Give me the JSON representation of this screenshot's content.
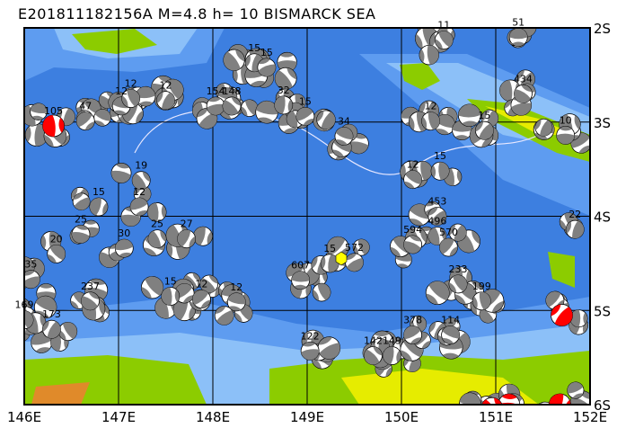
{
  "title": "E201811182156A M=4.8 h= 10 BISMARCK SEA",
  "map": {
    "lon_range": [
      146,
      152
    ],
    "lat_range": [
      -6,
      -2
    ],
    "lon_labels": [
      "146E",
      "147E",
      "148E",
      "149E",
      "150E",
      "151E",
      "152E"
    ],
    "lat_labels": [
      "2S",
      "3S",
      "4S",
      "5S",
      "6S"
    ],
    "grid": true,
    "colors": {
      "deep_ocean": "#3d7fe0",
      "mid_ocean": "#5e9cf0",
      "shallow": "#8cc0f8",
      "land_low": "#8ccc00",
      "land_high": "#e6ec00",
      "mountain": "#e08a2a",
      "ball_dark": "#808080",
      "ball_focus": "#ff0000",
      "ball_light": "#ffffff"
    }
  },
  "events": [
    {
      "lon": 151.24,
      "lat": -2.1,
      "label": "51"
    },
    {
      "lon": 150.45,
      "lat": -2.13,
      "label": "11"
    },
    {
      "lon": 148.44,
      "lat": -2.37,
      "label": "15"
    },
    {
      "lon": 148.57,
      "lat": -2.42,
      "label": "15"
    },
    {
      "lon": 151.29,
      "lat": -2.7,
      "label": "434"
    },
    {
      "lon": 146.31,
      "lat": -3.04,
      "label": "105",
      "red": true
    },
    {
      "lon": 146.65,
      "lat": -2.99,
      "label": "47"
    },
    {
      "lon": 147.03,
      "lat": -2.83,
      "label": "12"
    },
    {
      "lon": 147.13,
      "lat": -2.75,
      "label": "12"
    },
    {
      "lon": 147.5,
      "lat": -2.77,
      "label": "12"
    },
    {
      "lon": 148.03,
      "lat": -2.83,
      "label": "154"
    },
    {
      "lon": 148.2,
      "lat": -2.83,
      "label": "148"
    },
    {
      "lon": 148.75,
      "lat": -2.82,
      "label": "32"
    },
    {
      "lon": 148.98,
      "lat": -2.94,
      "label": "15"
    },
    {
      "lon": 149.39,
      "lat": -3.15,
      "label": "34"
    },
    {
      "lon": 150.31,
      "lat": -2.99,
      "label": "12"
    },
    {
      "lon": 150.88,
      "lat": -3.09,
      "label": "15"
    },
    {
      "lon": 151.74,
      "lat": -3.14,
      "label": "10"
    },
    {
      "lon": 147.24,
      "lat": -3.62,
      "label": "19"
    },
    {
      "lon": 146.79,
      "lat": -3.9,
      "label": "15"
    },
    {
      "lon": 147.22,
      "lat": -3.9,
      "label": "12"
    },
    {
      "lon": 150.12,
      "lat": -3.61,
      "label": "12"
    },
    {
      "lon": 150.41,
      "lat": -3.52,
      "label": "15"
    },
    {
      "lon": 150.38,
      "lat": -4.0,
      "label": "453"
    },
    {
      "lon": 146.6,
      "lat": -4.19,
      "label": "25"
    },
    {
      "lon": 147.41,
      "lat": -4.24,
      "label": "25"
    },
    {
      "lon": 147.72,
      "lat": -4.24,
      "label": "27"
    },
    {
      "lon": 147.06,
      "lat": -4.34,
      "label": "30"
    },
    {
      "lon": 146.34,
      "lat": -4.4,
      "label": "20"
    },
    {
      "lon": 149.24,
      "lat": -4.5,
      "label": "15"
    },
    {
      "lon": 149.5,
      "lat": -4.49,
      "label": "572"
    },
    {
      "lon": 150.12,
      "lat": -4.3,
      "label": "594"
    },
    {
      "lon": 150.38,
      "lat": -4.21,
      "label": "496"
    },
    {
      "lon": 150.5,
      "lat": -4.33,
      "label": "570"
    },
    {
      "lon": 148.93,
      "lat": -4.68,
      "label": "607"
    },
    {
      "lon": 150.6,
      "lat": -4.72,
      "label": "233"
    },
    {
      "lon": 151.84,
      "lat": -4.14,
      "label": "22"
    },
    {
      "lon": 146.07,
      "lat": -4.67,
      "label": "35"
    },
    {
      "lon": 146.7,
      "lat": -4.9,
      "label": "237"
    },
    {
      "lon": 147.55,
      "lat": -4.85,
      "label": "15"
    },
    {
      "lon": 147.88,
      "lat": -4.88,
      "label": "12"
    },
    {
      "lon": 148.25,
      "lat": -4.91,
      "label": "12"
    },
    {
      "lon": 146.0,
      "lat": -5.1,
      "label": "169"
    },
    {
      "lon": 146.29,
      "lat": -5.2,
      "label": "173"
    },
    {
      "lon": 149.03,
      "lat": -5.43,
      "label": "122"
    },
    {
      "lon": 149.7,
      "lat": -5.48,
      "label": "142"
    },
    {
      "lon": 149.9,
      "lat": -5.48,
      "label": "149"
    },
    {
      "lon": 150.12,
      "lat": -5.26,
      "label": "378"
    },
    {
      "lon": 150.52,
      "lat": -5.26,
      "label": "114"
    },
    {
      "lon": 150.85,
      "lat": -4.9,
      "label": "199"
    },
    {
      "lon": 151.7,
      "lat": -5.05,
      "label": "",
      "red": true
    },
    {
      "lon": 151.14,
      "lat": -6.0,
      "label": "",
      "red": true
    },
    {
      "lon": 150.96,
      "lat": -6.04,
      "label": "",
      "red": true
    },
    {
      "lon": 151.68,
      "lat": -6.0,
      "label": "",
      "red": true
    }
  ]
}
